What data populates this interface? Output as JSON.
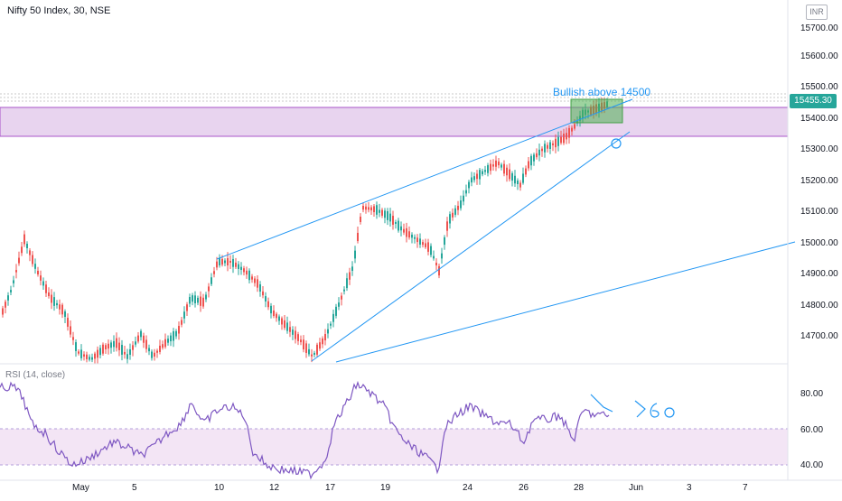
{
  "header": {
    "symbol_title": "Nifty 50 Index, 30, NSE",
    "currency": "INR"
  },
  "price_axis": {
    "labels": [
      "15700.00",
      "15600.00",
      "15500.00",
      "15400.00",
      "15300.00",
      "15200.00",
      "15100.00",
      "15000.00",
      "14900.00",
      "14800.00",
      "14700.00"
    ]
  },
  "last_price": "15455.30",
  "annotation": "Bullish above 14500",
  "rsi": {
    "title": "RSI (14, close)",
    "labels": [
      "80.00",
      "60.00",
      "40.00"
    ]
  },
  "time_axis": {
    "labels": [
      "May",
      "5",
      "10",
      "12",
      "17",
      "19",
      "24",
      "26",
      "28",
      "Jun",
      "3",
      "7"
    ]
  },
  "colors": {
    "up": "#26a69a",
    "down": "#ef5350",
    "zone": "#e1bee7",
    "trendline": "#2196f3",
    "rsi_line": "#7e57c2",
    "rsi_band": "#f3e5f5"
  }
}
